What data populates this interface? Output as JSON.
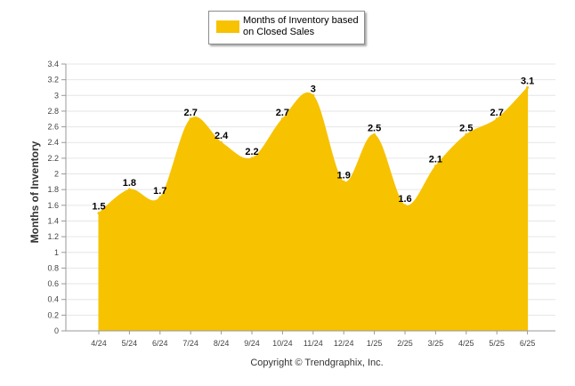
{
  "chart_data": {
    "type": "area",
    "categories": [
      "4/24",
      "5/24",
      "6/24",
      "7/24",
      "8/24",
      "9/24",
      "10/24",
      "11/24",
      "12/24",
      "1/25",
      "2/25",
      "3/25",
      "4/25",
      "5/25",
      "6/25"
    ],
    "series": [
      {
        "name": "Months of Inventory based on Closed Sales",
        "values": [
          1.5,
          1.8,
          1.7,
          2.7,
          2.4,
          2.2,
          2.7,
          3,
          1.9,
          2.5,
          1.6,
          2.1,
          2.5,
          2.7,
          3.1
        ],
        "labels": [
          "1.5",
          "1.8",
          "1.7",
          "2.7",
          "2.4",
          "2.2",
          "2.7",
          "3",
          "1.9",
          "2.5",
          "1.6",
          "2.1",
          "2.5",
          "2.7",
          "3.1"
        ]
      }
    ],
    "ylabel": "Months of Inventory",
    "ylim": [
      0,
      3.4
    ],
    "yticks": [
      "0",
      "0.2",
      "0.4",
      "0.6",
      "0.8",
      "1",
      "1.2",
      "1.4",
      "1.6",
      "1.8",
      "2",
      "2.2",
      "2.4",
      "2.6",
      "2.8",
      "3",
      "3.2",
      "3.4"
    ],
    "grid": true,
    "legend_position": "top-center",
    "color": "#f7c200"
  },
  "footer": {
    "copyright": "Copyright © Trendgraphix, Inc."
  }
}
